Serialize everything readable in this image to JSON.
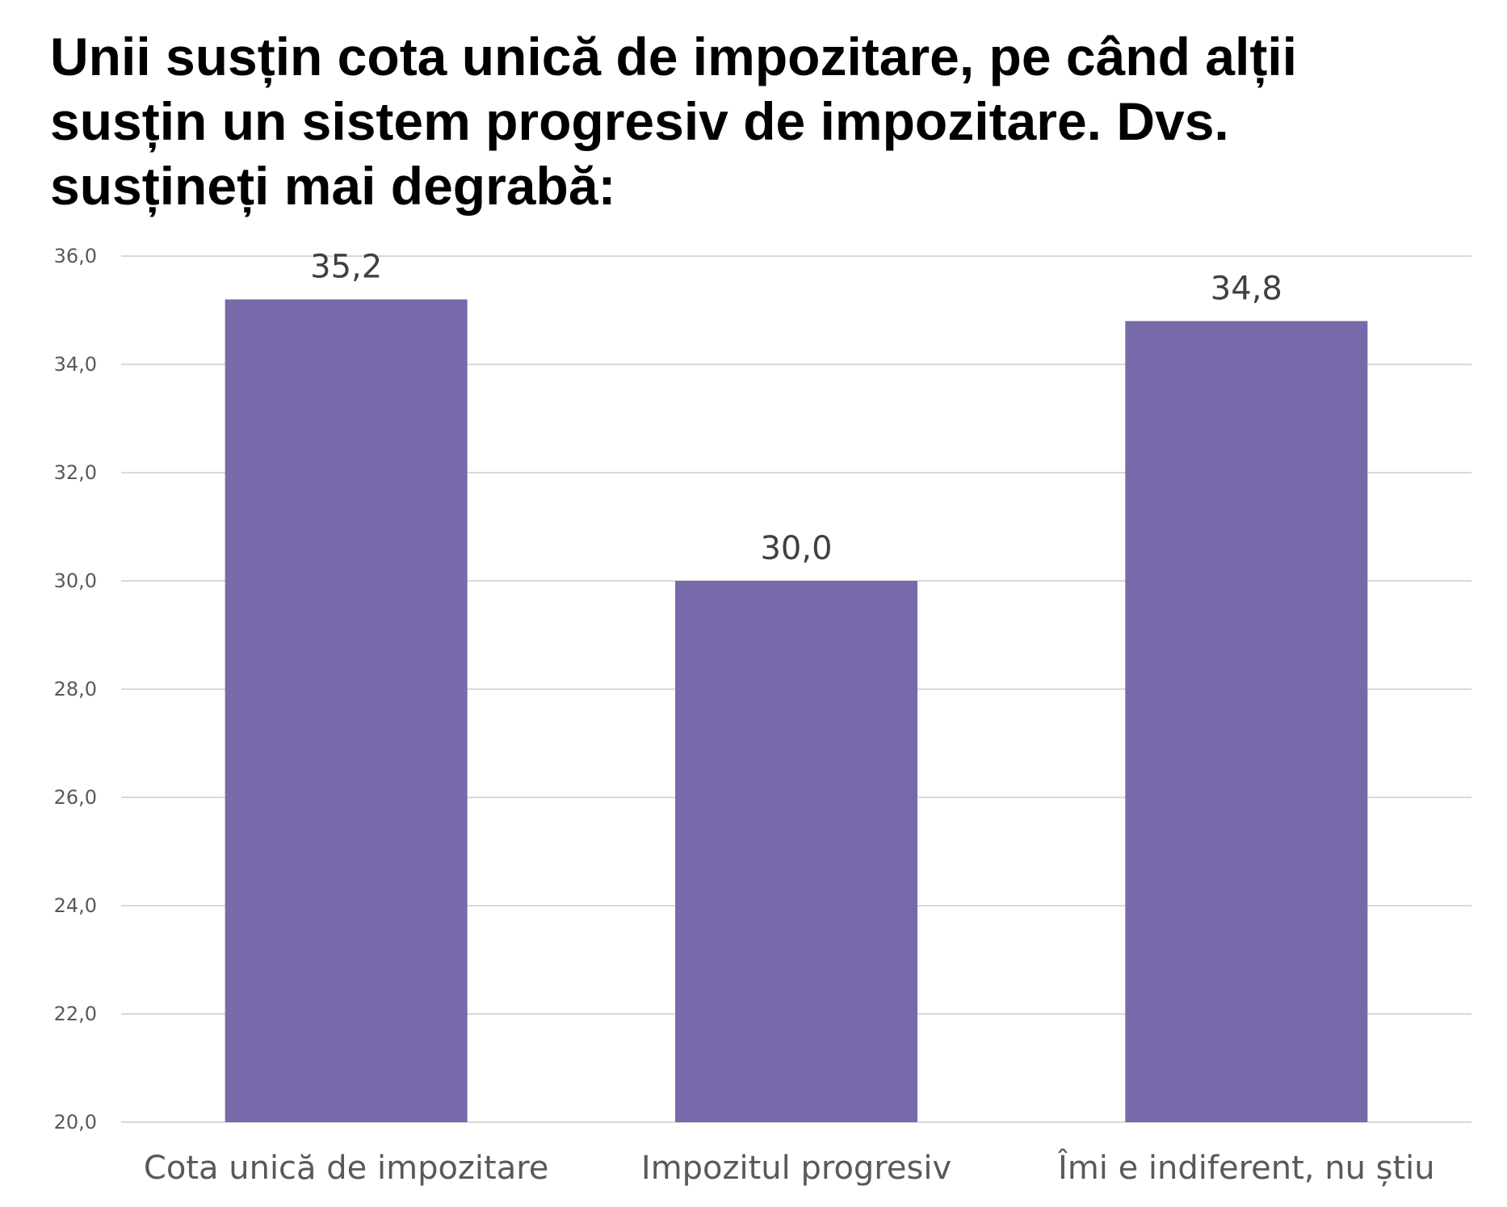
{
  "chart_data": {
    "type": "bar",
    "title": "Unii susțin cota unică de impozitare, pe când alții susțin un sistem progresiv de impozitare. Dvs. susțineți mai degrabă:",
    "categories": [
      "Cota unică de impozitare",
      "Impozitul progresiv",
      "Îmi e indiferent, nu știu"
    ],
    "values": [
      35.2,
      30.0,
      34.8
    ],
    "value_labels": [
      "35,2",
      "30,0",
      "34,8"
    ],
    "ylim": [
      20,
      36
    ],
    "yticks": [
      20,
      22,
      24,
      26,
      28,
      30,
      32,
      34,
      36
    ],
    "ytick_labels": [
      "20,0",
      "22,0",
      "24,0",
      "26,0",
      "28,0",
      "30,0",
      "32,0",
      "34,0",
      "36,0"
    ],
    "xlabel": "",
    "ylabel": "",
    "grid": true,
    "legend": "none",
    "bar_color": "#7769AA",
    "grid_color": "#D9D9D9"
  }
}
